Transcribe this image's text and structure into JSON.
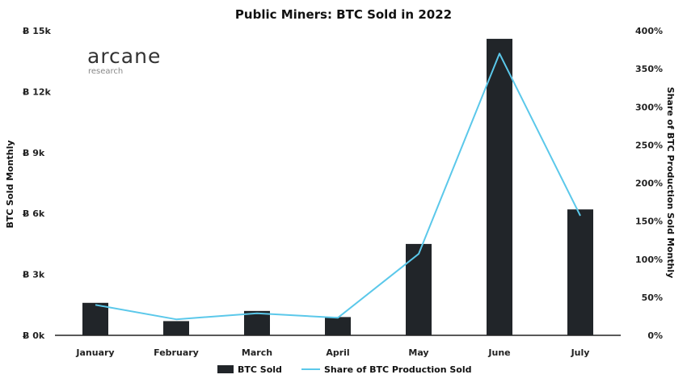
{
  "logo": {
    "name": "arcane",
    "subtitle": "research"
  },
  "colors": {
    "bar": "#212529",
    "line": "#5bc8ea",
    "axis": "#222222"
  },
  "chart_data": {
    "type": "bar",
    "title": "Public Miners: BTC Sold in 2022",
    "categories": [
      "January",
      "February",
      "March",
      "April",
      "May",
      "June",
      "July"
    ],
    "y_left": {
      "label": "BTC Sold Monthly",
      "range": [
        0,
        15000
      ],
      "ticks": [
        0,
        3000,
        6000,
        9000,
        12000,
        15000
      ],
      "tick_labels": [
        "Ƀ 0k",
        "Ƀ 3k",
        "Ƀ 6k",
        "Ƀ 9k",
        "Ƀ 12k",
        "Ƀ 15k"
      ]
    },
    "y_right": {
      "label": "Share of BTC Production Sold Monthly",
      "range": [
        0,
        400
      ],
      "ticks": [
        0,
        50,
        100,
        150,
        200,
        250,
        300,
        350,
        400
      ],
      "tick_labels": [
        "0%",
        "50%",
        "100%",
        "150%",
        "200%",
        "250%",
        "300%",
        "350%",
        "400%"
      ]
    },
    "series": [
      {
        "name": "BTC Sold",
        "type": "bar",
        "axis": "left",
        "values": [
          1600,
          700,
          1200,
          900,
          4500,
          14600,
          6200
        ]
      },
      {
        "name": "Share of BTC Production Sold",
        "type": "line",
        "axis": "right",
        "values": [
          40,
          21,
          29,
          23,
          107,
          370,
          157
        ]
      }
    ],
    "legend": "bottom",
    "grid": false
  }
}
